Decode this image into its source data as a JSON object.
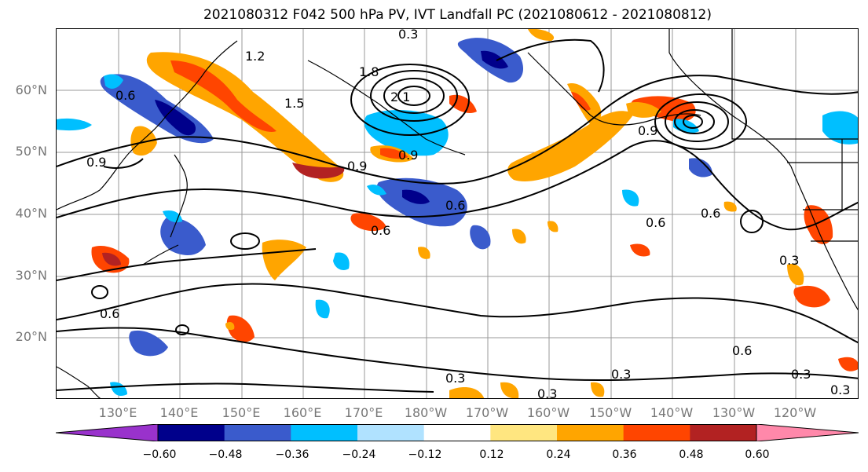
{
  "title": "2021080312 F042 500 hPa PV, IVT Landfall PC (2021080612 - 2021080812)",
  "y_axis_labels": [
    "60°N",
    "50°N",
    "40°N",
    "30°N",
    "20°N"
  ],
  "x_axis_labels": [
    "130°E",
    "140°E",
    "150°E",
    "160°E",
    "170°E",
    "180°W",
    "170°W",
    "160°W",
    "150°W",
    "140°W",
    "130°W",
    "120°W"
  ],
  "contour_labels": [
    "0.3",
    "1.2",
    "1.5",
    "1.8",
    "2.1",
    "0.9",
    "0.6",
    "0.9",
    "0.6",
    "0.6",
    "0.9",
    "0.6",
    "0.6",
    "0.6",
    "0.3",
    "0.3",
    "0.3",
    "0.3",
    "0.3",
    "0.3",
    "0.6",
    "0.9"
  ],
  "colorbar": {
    "ticks": [
      "−0.60",
      "−0.48",
      "−0.36",
      "−0.24",
      "−0.12",
      "0.12",
      "0.24",
      "0.36",
      "0.48",
      "0.60"
    ],
    "colors": [
      "#9932CC",
      "#00008B",
      "#3A5BCC",
      "#00BFFF",
      "#B0E2FF",
      "#FFFFFF",
      "#FFE680",
      "#FFA500",
      "#FF4500",
      "#B22222",
      "#FF88AA"
    ]
  }
}
